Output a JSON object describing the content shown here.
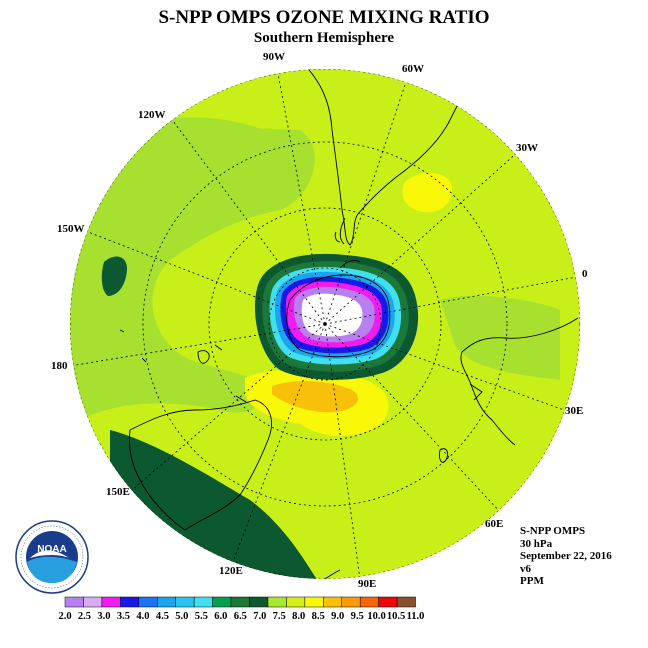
{
  "title": "S-NPP OMPS OZONE MIXING RATIO",
  "subtitle": "Southern Hemisphere",
  "longitude_labels": {
    "lon_90w": "90W",
    "lon_60w": "60W",
    "lon_30w": "30W",
    "lon_0": "0",
    "lon_30e": "30E",
    "lon_60e": "60E",
    "lon_90e": "90E",
    "lon_120e": "120E",
    "lon_150e": "150E",
    "lon_180": "180",
    "lon_150w": "150W",
    "lon_120w": "120W"
  },
  "info": {
    "instrument": "S-NPP OMPS",
    "level": "30 hPa",
    "date": "September 22, 2016",
    "version": "v6",
    "units": "PPM"
  },
  "logo": {
    "text": "NOAA",
    "ring_text": "NATIONAL OCEANIC AND ATMOSPHERIC ADMINISTRATION · U.S. DEPARTMENT OF COMMERCE"
  },
  "legend": {
    "labels": [
      "2.0",
      "2.5",
      "3.0",
      "3.5",
      "4.0",
      "4.5",
      "5.0",
      "5.5",
      "6.0",
      "6.5",
      "7.0",
      "7.5",
      "8.0",
      "8.5",
      "9.0",
      "9.5",
      "10.0",
      "10.5",
      "11.0"
    ],
    "colors": [
      "#b87ff0",
      "#d8acf0",
      "#f01cf0",
      "#1818e8",
      "#1c74f0",
      "#1ca4f0",
      "#28c4f0",
      "#40e0f0",
      "#00a050",
      "#1c7838",
      "#0c5830",
      "#a8e830",
      "#d8f018",
      "#f8f808",
      "#f8c008",
      "#f89c08",
      "#f86408",
      "#f00808",
      "#8c5030"
    ]
  }
}
